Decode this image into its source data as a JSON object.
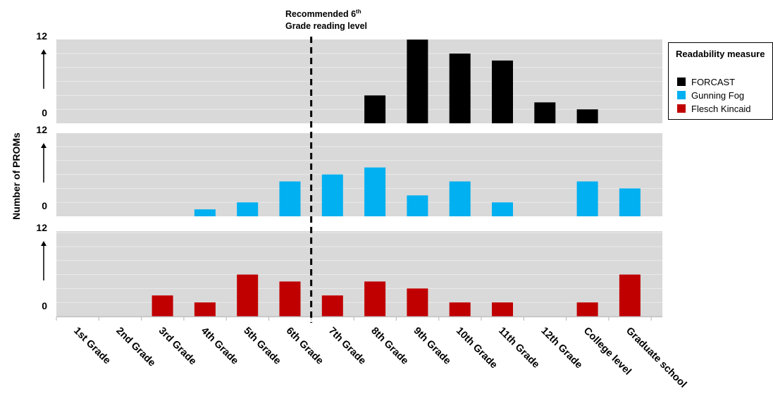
{
  "chart_data": {
    "type": "bar",
    "ylabel": "Number of PROMs",
    "categories": [
      "1st Grade",
      "2nd Grade",
      "3rd Grade",
      "4th Grade",
      "5th Grade",
      "6th Grade",
      "7th Grade",
      "8th Grade",
      "9th Grade",
      "10th Grade",
      "11th Grade",
      "12th Grade",
      "College level",
      "Graduate school"
    ],
    "ylim": [
      0,
      12
    ],
    "y_tick_labels": [
      "0",
      "12"
    ],
    "grid": true,
    "series": [
      {
        "name": "FORCAST",
        "color": "#000000",
        "values": [
          0,
          0,
          0,
          0,
          0,
          0,
          0,
          4,
          12,
          10,
          9,
          3,
          2,
          0
        ]
      },
      {
        "name": "Gunning Fog",
        "color": "#00b0f0",
        "values": [
          0,
          0,
          0,
          1,
          2,
          5,
          6,
          7,
          3,
          5,
          2,
          0,
          5,
          4
        ]
      },
      {
        "name": "Flesch Kincaid",
        "color": "#c00000",
        "values": [
          0,
          0,
          3,
          2,
          6,
          5,
          3,
          5,
          4,
          2,
          2,
          0,
          2,
          6
        ]
      }
    ],
    "legend": {
      "title": "Readability measure",
      "position": "right"
    },
    "annotation": {
      "text_main": "Recommended 6",
      "text_sup": "th",
      "text_line2": "Grade reading level",
      "position_between": [
        "6th Grade",
        "7th Grade"
      ]
    },
    "panel_background": "#d9d9d9"
  }
}
